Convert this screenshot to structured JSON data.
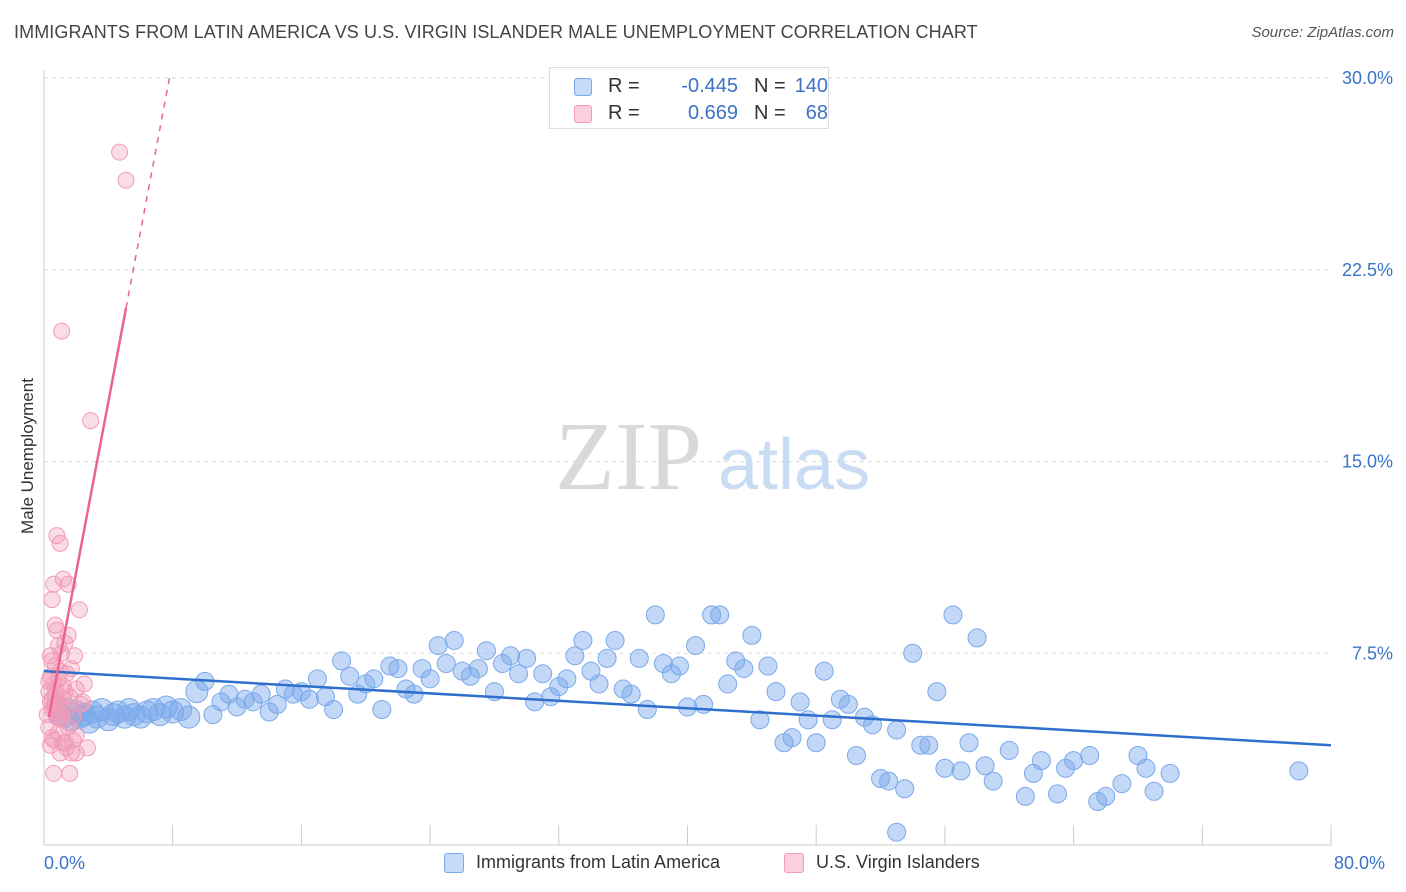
{
  "title": "IMMIGRANTS FROM LATIN AMERICA VS U.S. VIRGIN ISLANDER MALE UNEMPLOYMENT CORRELATION CHART",
  "source": "Source: ZipAtlas.com",
  "watermark": {
    "zip": "ZIP",
    "atlas": "atlas"
  },
  "colors": {
    "blue": "#7aa9ea",
    "blue_line": "#2f6fcc",
    "pink": "#f29cb6",
    "pink_line": "#e9648f",
    "axis_text": "#3b73c8",
    "grid": "#dddddd"
  },
  "legend": {
    "rows": [
      {
        "series": "Immigrants from Latin America",
        "r_label": "R =",
        "r_value": "-0.445",
        "n_label": "N =",
        "n_value": "140",
        "color": "#a9c8f3"
      },
      {
        "series": "U.S. Virgin Islanders",
        "r_label": "R =",
        "r_value": "0.669",
        "n_label": "N =",
        "n_value": "68",
        "color": "#f7b9cb"
      }
    ]
  },
  "chart_data": {
    "type": "scatter",
    "title": "IMMIGRANTS FROM LATIN AMERICA VS U.S. VIRGIN ISLANDER MALE UNEMPLOYMENT CORRELATION CHART",
    "xlabel": "",
    "ylabel": "Male Unemployment",
    "xlim": [
      0,
      80
    ],
    "ylim": [
      0,
      30
    ],
    "x_tick_labels": [
      "0.0%",
      "80.0%"
    ],
    "y_ticks": [
      7.5,
      15.0,
      22.5,
      30.0
    ],
    "y_tick_labels": [
      "7.5%",
      "15.0%",
      "22.5%",
      "30.0%"
    ],
    "grid": true,
    "legend_position": "top-center",
    "series": [
      {
        "name": "Immigrants from Latin America",
        "trend": {
          "x": [
            0,
            80
          ],
          "y": [
            6.8,
            3.9
          ]
        },
        "points": [
          [
            0.8,
            5.4
          ],
          [
            1,
            5.1
          ],
          [
            1.2,
            5.0
          ],
          [
            1.5,
            5.3
          ],
          [
            1.7,
            4.9
          ],
          [
            2,
            5.2
          ],
          [
            2.2,
            5.0
          ],
          [
            2.5,
            5.1
          ],
          [
            2.8,
            4.8
          ],
          [
            3,
            5.2
          ],
          [
            3.3,
            5.0
          ],
          [
            3.6,
            5.3
          ],
          [
            4,
            4.9
          ],
          [
            4.3,
            5.1
          ],
          [
            4.6,
            5.2
          ],
          [
            5,
            5.0
          ],
          [
            5.3,
            5.3
          ],
          [
            5.6,
            5.1
          ],
          [
            6,
            5.0
          ],
          [
            6.4,
            5.2
          ],
          [
            6.8,
            5.3
          ],
          [
            7.2,
            5.1
          ],
          [
            7.6,
            5.4
          ],
          [
            8,
            5.2
          ],
          [
            8.5,
            5.3
          ],
          [
            9,
            5.0
          ],
          [
            9.5,
            6.0
          ],
          [
            10,
            6.4
          ],
          [
            10.5,
            5.1
          ],
          [
            11,
            5.6
          ],
          [
            11.5,
            5.9
          ],
          [
            12,
            5.4
          ],
          [
            12.5,
            5.7
          ],
          [
            13,
            5.6
          ],
          [
            13.5,
            5.9
          ],
          [
            14,
            5.2
          ],
          [
            14.5,
            5.5
          ],
          [
            15,
            6.1
          ],
          [
            15.5,
            5.9
          ],
          [
            16,
            6.0
          ],
          [
            16.5,
            5.7
          ],
          [
            17,
            6.5
          ],
          [
            17.5,
            5.8
          ],
          [
            18,
            5.3
          ],
          [
            18.5,
            7.2
          ],
          [
            19,
            6.6
          ],
          [
            19.5,
            5.9
          ],
          [
            20,
            6.3
          ],
          [
            20.5,
            6.5
          ],
          [
            21,
            5.3
          ],
          [
            21.5,
            7.0
          ],
          [
            22,
            6.9
          ],
          [
            22.5,
            6.1
          ],
          [
            23,
            5.9
          ],
          [
            23.5,
            6.9
          ],
          [
            24,
            6.5
          ],
          [
            24.5,
            7.8
          ],
          [
            25,
            7.1
          ],
          [
            25.5,
            8.0
          ],
          [
            26,
            6.8
          ],
          [
            26.5,
            6.6
          ],
          [
            27,
            6.9
          ],
          [
            27.5,
            7.6
          ],
          [
            28,
            6.0
          ],
          [
            28.5,
            7.1
          ],
          [
            29,
            7.4
          ],
          [
            29.5,
            6.7
          ],
          [
            30,
            7.3
          ],
          [
            30.5,
            5.6
          ],
          [
            31,
            6.7
          ],
          [
            31.5,
            5.8
          ],
          [
            32,
            6.2
          ],
          [
            32.5,
            6.5
          ],
          [
            33,
            7.4
          ],
          [
            33.5,
            8.0
          ],
          [
            34,
            6.8
          ],
          [
            34.5,
            6.3
          ],
          [
            35,
            7.3
          ],
          [
            35.5,
            8.0
          ],
          [
            36,
            6.1
          ],
          [
            36.5,
            5.9
          ],
          [
            37,
            7.3
          ],
          [
            37.5,
            5.3
          ],
          [
            38,
            9.0
          ],
          [
            38.5,
            7.1
          ],
          [
            39,
            6.7
          ],
          [
            39.5,
            7.0
          ],
          [
            40,
            5.4
          ],
          [
            40.5,
            7.8
          ],
          [
            41,
            5.5
          ],
          [
            41.5,
            9.0
          ],
          [
            42,
            9.0
          ],
          [
            42.5,
            6.3
          ],
          [
            43,
            7.2
          ],
          [
            43.5,
            6.9
          ],
          [
            44,
            8.2
          ],
          [
            44.5,
            4.9
          ],
          [
            45,
            7.0
          ],
          [
            45.5,
            6.0
          ],
          [
            46,
            4.0
          ],
          [
            46.5,
            4.2
          ],
          [
            47,
            5.6
          ],
          [
            47.5,
            4.9
          ],
          [
            48,
            4.0
          ],
          [
            48.5,
            6.8
          ],
          [
            49,
            4.9
          ],
          [
            49.5,
            5.7
          ],
          [
            50,
            5.5
          ],
          [
            50.5,
            3.5
          ],
          [
            51,
            5.0
          ],
          [
            51.5,
            4.7
          ],
          [
            52,
            2.6
          ],
          [
            52.5,
            2.5
          ],
          [
            53,
            4.5
          ],
          [
            53.5,
            2.2
          ],
          [
            54,
            7.5
          ],
          [
            54.5,
            3.9
          ],
          [
            55,
            3.9
          ],
          [
            55.5,
            6.0
          ],
          [
            56,
            3.0
          ],
          [
            56.5,
            9.0
          ],
          [
            57,
            2.9
          ],
          [
            57.5,
            4.0
          ],
          [
            58,
            8.1
          ],
          [
            58.5,
            3.1
          ],
          [
            59,
            2.5
          ],
          [
            60,
            3.7
          ],
          [
            61,
            1.9
          ],
          [
            61.5,
            2.8
          ],
          [
            62,
            3.3
          ],
          [
            63,
            2.0
          ],
          [
            63.5,
            3.0
          ],
          [
            64,
            3.3
          ],
          [
            65,
            3.5
          ],
          [
            65.5,
            1.7
          ],
          [
            66,
            1.9
          ],
          [
            67,
            2.4
          ],
          [
            68,
            3.5
          ],
          [
            68.5,
            3.0
          ],
          [
            69,
            2.1
          ],
          [
            70,
            2.8
          ],
          [
            78,
            2.9
          ],
          [
            53,
            0.5
          ]
        ]
      },
      {
        "name": "U.S. Virgin Islanders",
        "trend": {
          "x": [
            0.3,
            5.1
          ],
          "y": [
            5.0,
            21.0
          ]
        },
        "trend_dashed": {
          "x": [
            5.1,
            7.8
          ],
          "y": [
            21.0,
            30.0
          ]
        },
        "points": [
          [
            0.2,
            5.1
          ],
          [
            0.3,
            6.0
          ],
          [
            0.3,
            4.6
          ],
          [
            0.4,
            5.6
          ],
          [
            0.4,
            6.6
          ],
          [
            0.5,
            7.2
          ],
          [
            0.5,
            5.3
          ],
          [
            0.6,
            4.1
          ],
          [
            0.6,
            6.3
          ],
          [
            0.7,
            5.9
          ],
          [
            0.7,
            7.0
          ],
          [
            0.8,
            5.2
          ],
          [
            0.8,
            8.4
          ],
          [
            0.9,
            6.5
          ],
          [
            0.9,
            4.4
          ],
          [
            1.0,
            5.5
          ],
          [
            1.0,
            6.8
          ],
          [
            1.1,
            7.5
          ],
          [
            1.1,
            4.9
          ],
          [
            1.2,
            5.7
          ],
          [
            1.2,
            6.2
          ],
          [
            1.3,
            7.9
          ],
          [
            1.3,
            4.0
          ],
          [
            1.4,
            5.3
          ],
          [
            1.4,
            6.7
          ],
          [
            1.5,
            8.2
          ],
          [
            1.5,
            4.6
          ],
          [
            1.6,
            5.8
          ],
          [
            1.7,
            6.9
          ],
          [
            1.7,
            3.6
          ],
          [
            1.8,
            5.0
          ],
          [
            1.9,
            7.4
          ],
          [
            2.0,
            4.3
          ],
          [
            2.0,
            6.1
          ],
          [
            2.2,
            9.2
          ],
          [
            2.3,
            5.5
          ],
          [
            2.5,
            6.3
          ],
          [
            2.7,
            3.8
          ],
          [
            0.5,
            9.6
          ],
          [
            0.6,
            10.2
          ],
          [
            0.7,
            8.6
          ],
          [
            0.8,
            12.1
          ],
          [
            1.0,
            11.8
          ],
          [
            1.2,
            10.4
          ],
          [
            1.5,
            10.2
          ],
          [
            0.4,
            3.9
          ],
          [
            0.5,
            4.2
          ],
          [
            0.6,
            2.8
          ],
          [
            0.8,
            5.0
          ],
          [
            1.0,
            3.6
          ],
          [
            1.2,
            4.0
          ],
          [
            1.4,
            3.8
          ],
          [
            1.6,
            2.8
          ],
          [
            1.8,
            4.1
          ],
          [
            2.0,
            3.6
          ],
          [
            0.3,
            6.4
          ],
          [
            0.4,
            7.4
          ],
          [
            0.5,
            5.7
          ],
          [
            0.6,
            5.4
          ],
          [
            0.7,
            6.1
          ],
          [
            0.9,
            7.8
          ],
          [
            1.1,
            5.1
          ],
          [
            1.3,
            6.0
          ],
          [
            1.1,
            20.1
          ],
          [
            2.9,
            16.6
          ],
          [
            4.7,
            27.1
          ],
          [
            5.1,
            26.0
          ],
          [
            2.4,
            5.6
          ]
        ]
      }
    ],
    "watermark": "ZIPatlas"
  }
}
